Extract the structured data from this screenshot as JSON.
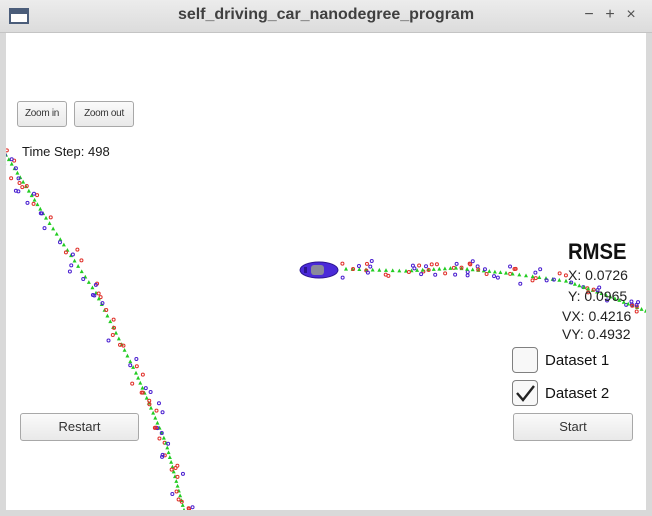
{
  "window": {
    "title": "self_driving_car_nanodegree_program",
    "controls": {
      "minimize": "−",
      "maximize": "+",
      "close": "×"
    }
  },
  "toolbar": {
    "zoom_in_label": "Zoom in",
    "zoom_out_label": "Zoom out"
  },
  "status": {
    "time_step_label": "Time Step: 498"
  },
  "rmse": {
    "title": "RMSE",
    "x": "X: 0.0726",
    "y": "Y: 0.0965",
    "vx": "VX: 0.4216",
    "vy": "VY: 0.4932"
  },
  "datasets": [
    {
      "label": "Dataset 1",
      "checked": false
    },
    {
      "label": "Dataset 2",
      "checked": true
    }
  ],
  "actions": {
    "restart_label": "Restart",
    "start_label": "Start"
  },
  "colors": {
    "ground_truth": "#22cc22",
    "lidar": "#e0302a",
    "radar": "#4a1fd0",
    "car": "#4a2ad8"
  }
}
